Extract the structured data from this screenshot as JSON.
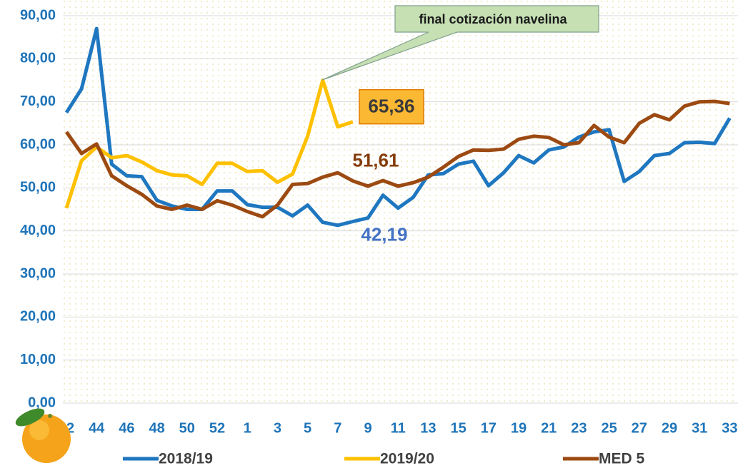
{
  "chart_data": {
    "type": "line",
    "annotation": "final cotización navelina",
    "categories": [
      "42",
      null,
      "44",
      null,
      "46",
      null,
      "48",
      null,
      "50",
      null,
      "52",
      null,
      "1",
      null,
      "3",
      null,
      "5",
      null,
      "7",
      null,
      "9",
      null,
      "11",
      null,
      "13",
      null,
      "15",
      null,
      "17",
      null,
      "19",
      null,
      "21",
      null,
      "23",
      null,
      "25",
      null,
      "27",
      null,
      "29",
      null,
      "31",
      null,
      "33"
    ],
    "ylim": [
      0,
      90
    ],
    "yticks": [
      {
        "value": 0,
        "label": "0,00"
      },
      {
        "value": 10,
        "label": "10,00"
      },
      {
        "value": 20,
        "label": "20,00"
      },
      {
        "value": 30,
        "label": "30,00"
      },
      {
        "value": 40,
        "label": "40,00"
      },
      {
        "value": 50,
        "label": "50,00"
      },
      {
        "value": 60,
        "label": "60,00"
      },
      {
        "value": 70,
        "label": "70,00"
      },
      {
        "value": 80,
        "label": "80,00"
      },
      {
        "value": 90,
        "label": "90,00"
      }
    ],
    "grid": true,
    "legend": "bottom",
    "series": [
      {
        "name": "2018/19",
        "color": "#1f77c0",
        "values": [
          67.5,
          73,
          87,
          55.5,
          52.8,
          52.6,
          47.1,
          45.8,
          45,
          45,
          49.3,
          49.3,
          46.1,
          45.5,
          45.5,
          43.5,
          46,
          42,
          41.3,
          42.19,
          43,
          48.3,
          45.3,
          47.8,
          53,
          53.3,
          55.5,
          56.2,
          50.5,
          53.5,
          57.5,
          55.8,
          58.8,
          59.5,
          61.8,
          63,
          63.5,
          51.5,
          53.8,
          57.5,
          58,
          60.5,
          60.6,
          60.3,
          66.2
        ],
        "value_labels": [
          null,
          null,
          null,
          null,
          null,
          null,
          null,
          null,
          null,
          null,
          null,
          null,
          null,
          null,
          null,
          null,
          null,
          null,
          null,
          "42,19",
          null,
          null,
          null,
          null,
          null,
          null,
          null,
          null,
          null,
          null,
          null,
          null,
          null,
          null,
          null,
          null,
          null,
          null,
          null,
          null,
          null,
          null,
          null,
          null,
          null
        ]
      },
      {
        "name": "2019/20",
        "color": "#ffc000",
        "values": [
          45.3,
          56.3,
          59.5,
          57,
          57.5,
          56,
          54,
          53,
          52.8,
          50.8,
          55.7,
          55.7,
          53.8,
          54,
          51.3,
          53.2,
          62,
          75,
          64.2,
          65.36,
          null,
          null,
          null,
          null,
          null,
          null,
          null,
          null,
          null,
          null,
          null,
          null,
          null,
          null,
          null,
          null,
          null,
          null,
          null,
          null,
          null,
          null,
          null,
          null,
          null
        ],
        "value_labels": [
          null,
          null,
          null,
          null,
          null,
          null,
          null,
          null,
          null,
          null,
          null,
          null,
          null,
          null,
          null,
          null,
          null,
          null,
          null,
          "65,36",
          null,
          null,
          null,
          null,
          null,
          null,
          null,
          null,
          null,
          null,
          null,
          null,
          null,
          null,
          null,
          null,
          null,
          null,
          null,
          null,
          null,
          null,
          null,
          null,
          null
        ]
      },
      {
        "name": "MED 5",
        "color": "#9c4a12",
        "values": [
          63,
          58,
          60.2,
          52.8,
          50.5,
          48.5,
          45.8,
          45,
          46,
          45,
          47,
          46,
          44.5,
          43.3,
          46,
          50.8,
          51,
          52.5,
          53.5,
          51.61,
          50.4,
          51.7,
          50.4,
          51.2,
          52.5,
          54.8,
          57.3,
          58.8,
          58.7,
          59,
          61.3,
          62,
          61.7,
          60,
          60.5,
          64.5,
          61.8,
          60.5,
          65,
          67,
          65.8,
          69,
          70,
          70.1,
          69.6
        ],
        "value_labels": [
          null,
          null,
          null,
          null,
          null,
          null,
          null,
          null,
          null,
          null,
          null,
          null,
          null,
          null,
          null,
          null,
          null,
          null,
          null,
          "51,61",
          null,
          null,
          null,
          null,
          null,
          null,
          null,
          null,
          null,
          null,
          null,
          null,
          null,
          null,
          null,
          null,
          null,
          null,
          null,
          null,
          null,
          null,
          null,
          null,
          null
        ]
      }
    ]
  }
}
